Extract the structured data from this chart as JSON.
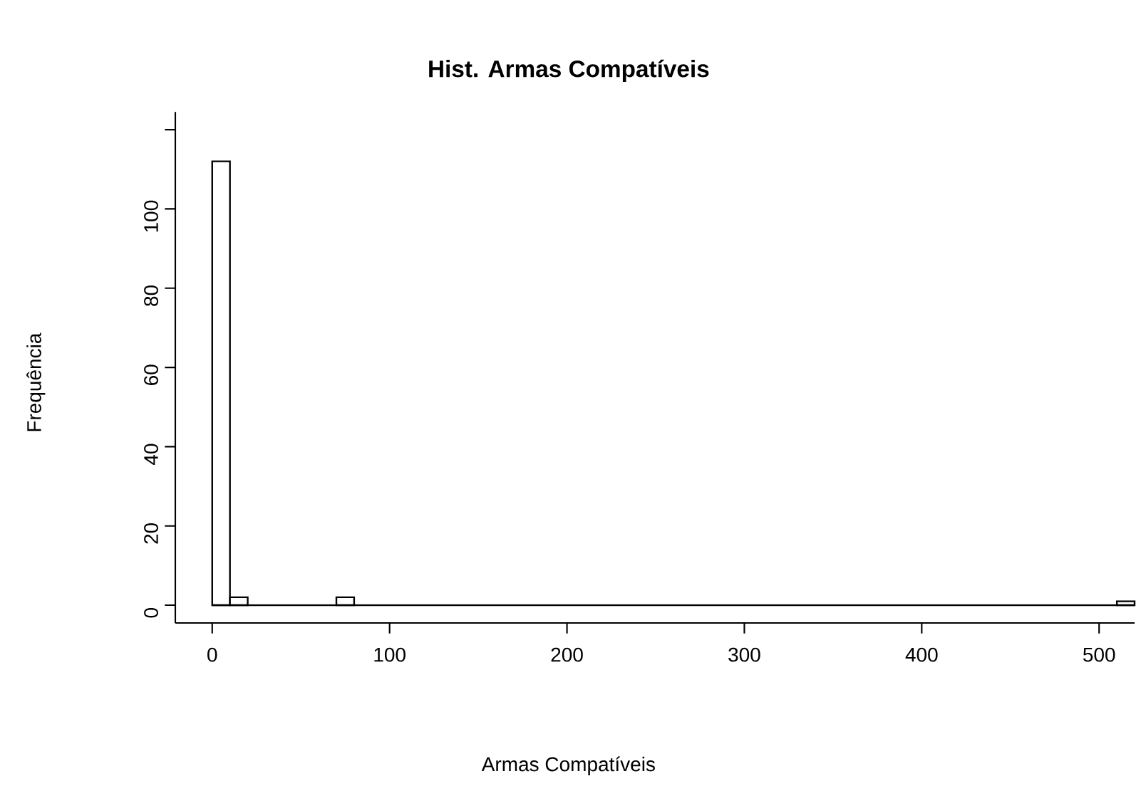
{
  "chart_data": {
    "type": "histogram",
    "title": "Hist. Armas Compatíveis",
    "xlabel": "Armas Compatíveis",
    "ylabel": "Frequência",
    "bins": [
      0,
      10,
      20,
      30,
      40,
      50,
      60,
      70,
      80,
      90,
      100,
      110,
      120,
      130,
      140,
      150,
      160,
      170,
      180,
      190,
      200,
      210,
      220,
      230,
      240,
      250,
      260,
      270,
      280,
      290,
      300,
      310,
      320,
      330,
      340,
      350,
      360,
      370,
      380,
      390,
      400,
      410,
      420,
      430,
      440,
      450,
      460,
      470,
      480,
      490,
      500,
      510,
      520
    ],
    "values": [
      112,
      2,
      0,
      0,
      0,
      0,
      0,
      2,
      0,
      0,
      0,
      0,
      0,
      0,
      0,
      0,
      0,
      0,
      0,
      0,
      0,
      0,
      0,
      0,
      0,
      0,
      0,
      0,
      0,
      0,
      0,
      0,
      0,
      0,
      0,
      0,
      0,
      0,
      0,
      0,
      0,
      0,
      0,
      0,
      0,
      0,
      0,
      0,
      0,
      0,
      0,
      1
    ],
    "xlim": [
      -20.8,
      520
    ],
    "ylim": [
      -4.48,
      124.48
    ],
    "xticks": [
      0,
      100,
      200,
      300,
      400,
      500
    ],
    "yticks": [
      0,
      20,
      40,
      60,
      80,
      100,
      {
        "value": 120,
        "label": null
      }
    ],
    "ref_lines": [
      {
        "axis": "y",
        "value": 0
      }
    ],
    "grid": false
  }
}
